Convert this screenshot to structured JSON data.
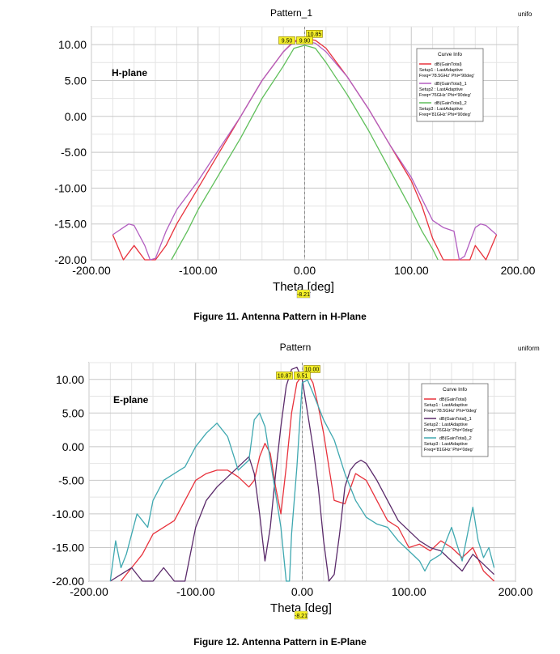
{
  "charts": [
    {
      "title": "Pattern_1",
      "corner_label": "unifo",
      "plane_label": "H-plane",
      "caption": "Figure 11. Antenna Pattern in H-Plane",
      "xlabel": "Theta [deg]",
      "x_marker_label": "-8.21",
      "legend_title": "Curve Info",
      "legend": [
        {
          "lines": [
            "dB(GainTotal)",
            "Setup1 : LastAdaptive",
            "Freq='78.5GHz' Phi='90deg'"
          ],
          "color": "#e8323c"
        },
        {
          "lines": [
            "dB(GainTotal)_1",
            "Setup2 : LastAdaptive",
            "Freq='76GHz' Phi='90deg'"
          ],
          "color": "#b25ec0"
        },
        {
          "lines": [
            "dB(GainTotal)_2",
            "Setup3 : LastAdaptive",
            "Freq='81GHz' Phi='90deg'"
          ],
          "color": "#5fbf5a"
        }
      ],
      "peak_labels": [
        "10.85",
        "9.50",
        "9.90"
      ]
    },
    {
      "title": "Pattern",
      "corner_label": "uniform",
      "plane_label": "E-plane",
      "caption": "Figure 12. Antenna Pattern in E-Plane",
      "xlabel": "Theta [deg]",
      "x_marker_label": "-8.21",
      "legend_title": "Curve Info",
      "legend": [
        {
          "lines": [
            "dB(GainTotal)",
            "Setup1 : LastAdaptive",
            "Freq='78.5GHz' Phi='0deg'"
          ],
          "color": "#e8323c"
        },
        {
          "lines": [
            "dB(GainTotal)_1",
            "Setup2 : LastAdaptive",
            "Freq='76GHz' Phi='0deg'"
          ],
          "color": "#5a2a6a"
        },
        {
          "lines": [
            "dB(GainTotal)_2",
            "Setup3 : LastAdaptive",
            "Freq='81GHz' Phi='0deg'"
          ],
          "color": "#3fa8b0"
        }
      ],
      "peak_labels": [
        "10.00",
        "10.87",
        "9.51"
      ]
    }
  ],
  "chart_data": [
    {
      "type": "line",
      "title": "Pattern_1",
      "xlabel": "Theta [deg]",
      "ylabel": "",
      "xlim": [
        -200,
        200
      ],
      "ylim": [
        -20,
        12.5
      ],
      "xticks": [
        "-200.00",
        "-100.00",
        "0.00",
        "100.00",
        "200.00"
      ],
      "xtick_values": [
        -200,
        -100,
        0,
        100,
        200
      ],
      "yticks": [
        "10.00",
        "5.00",
        "0.00",
        "-5.00",
        "-10.00",
        "-15.00",
        "-20.00"
      ],
      "ytick_values": [
        10,
        5,
        0,
        -5,
        -10,
        -15,
        -20
      ],
      "grid": true,
      "legend_position": "top-right",
      "series": [
        {
          "name": "dB(GainTotal)",
          "color": "#e8323c",
          "x": [
            -180,
            -170,
            -160,
            -150,
            -140,
            -130,
            -120,
            -100,
            -80,
            -60,
            -40,
            -20,
            -10,
            0,
            10,
            20,
            40,
            60,
            80,
            100,
            110,
            120,
            130,
            135,
            140,
            155,
            160,
            170,
            180
          ],
          "y": [
            -16.5,
            -20,
            -18,
            -21,
            -20,
            -18,
            -15,
            -10,
            -5,
            0,
            5,
            9,
            10.5,
            10.85,
            10.6,
            9.5,
            5.5,
            1,
            -4,
            -9,
            -12.5,
            -17,
            -22,
            -22,
            -22,
            -22,
            -18,
            -20,
            -16.5
          ]
        },
        {
          "name": "dB(GainTotal)_1",
          "color": "#b25ec0",
          "x": [
            -180,
            -170,
            -165,
            -160,
            -150,
            -145,
            -140,
            -130,
            -120,
            -100,
            -80,
            -60,
            -40,
            -20,
            -10,
            0,
            10,
            20,
            40,
            60,
            80,
            100,
            110,
            120,
            130,
            140,
            145,
            150,
            160,
            165,
            170,
            180
          ],
          "y": [
            -16.5,
            -15.5,
            -15,
            -15.2,
            -18,
            -20,
            -19.8,
            -16,
            -13,
            -9,
            -4.5,
            0,
            5,
            9,
            10.4,
            10.5,
            10.2,
            9,
            5.5,
            1,
            -4,
            -8.5,
            -11.5,
            -14.5,
            -15.5,
            -16,
            -20,
            -19.5,
            -15.5,
            -15,
            -15.2,
            -16.5
          ]
        },
        {
          "name": "dB(GainTotal)_2",
          "color": "#5fbf5a",
          "x": [
            -125,
            -110,
            -100,
            -80,
            -60,
            -40,
            -20,
            -10,
            0,
            10,
            20,
            40,
            60,
            80,
            100,
            110,
            120,
            125
          ],
          "y": [
            -20,
            -16,
            -13,
            -8,
            -3,
            2.5,
            7,
            9.5,
            9.9,
            9.5,
            7.5,
            3,
            -2,
            -7.5,
            -13,
            -16,
            -18.5,
            -20
          ]
        }
      ]
    },
    {
      "type": "line",
      "title": "Pattern",
      "xlabel": "Theta [deg]",
      "ylabel": "",
      "xlim": [
        -200,
        200
      ],
      "ylim": [
        -20,
        12.5
      ],
      "xticks": [
        "-200.00",
        "-100.00",
        "0.00",
        "100.00",
        "200.00"
      ],
      "xtick_values": [
        -200,
        -100,
        0,
        100,
        200
      ],
      "yticks": [
        "10.00",
        "5.00",
        "0.00",
        "-5.00",
        "-10.00",
        "-15.00",
        "-20.00"
      ],
      "ytick_values": [
        10,
        5,
        0,
        -5,
        -10,
        -15,
        -20
      ],
      "grid": true,
      "legend_position": "top-right",
      "series": [
        {
          "name": "dB(GainTotal)",
          "color": "#e8323c",
          "x": [
            -170,
            -160,
            -150,
            -140,
            -120,
            -100,
            -90,
            -80,
            -70,
            -60,
            -50,
            -45,
            -40,
            -35,
            -30,
            -25,
            -20,
            -15,
            -10,
            -5,
            0,
            5,
            10,
            15,
            20,
            25,
            30,
            40,
            50,
            60,
            70,
            80,
            90,
            100,
            110,
            120,
            130,
            140,
            150,
            160,
            170,
            180
          ],
          "y": [
            -20,
            -18,
            -16,
            -13,
            -11,
            -5,
            -4,
            -3.5,
            -3.5,
            -4.5,
            -6,
            -5,
            -1.5,
            0.5,
            -1,
            -6,
            -10,
            -3,
            5,
            9.5,
            10.6,
            10.87,
            9.5,
            6,
            2,
            -3,
            -8,
            -8.5,
            -4,
            -5,
            -8,
            -11,
            -12,
            -15,
            -14.5,
            -15.5,
            -14,
            -15,
            -16.5,
            -15,
            -18.5,
            -20
          ]
        },
        {
          "name": "dB(GainTotal)_1",
          "color": "#5a2a6a",
          "x": [
            -180,
            -170,
            -160,
            -150,
            -140,
            -130,
            -120,
            -110,
            -100,
            -90,
            -80,
            -70,
            -60,
            -50,
            -45,
            -40,
            -35,
            -30,
            -25,
            -20,
            -15,
            -10,
            -5,
            0,
            5,
            10,
            15,
            20,
            25,
            30,
            35,
            40,
            45,
            50,
            55,
            60,
            70,
            80,
            90,
            100,
            110,
            120,
            130,
            140,
            150,
            160,
            170,
            180
          ],
          "y": [
            -20,
            -19,
            -18,
            -20,
            -20,
            -18,
            -20,
            -20,
            -12,
            -8,
            -6,
            -4.5,
            -3,
            -1.5,
            -4,
            -10,
            -17,
            -12,
            -4,
            3,
            9,
            11.5,
            11.8,
            10,
            5,
            0,
            -6,
            -14,
            -20,
            -19,
            -13,
            -6,
            -3.5,
            -2.5,
            -2,
            -2.5,
            -5,
            -8,
            -11,
            -12.5,
            -14,
            -15,
            -15.5,
            -17,
            -18.5,
            -16,
            -17.5,
            -19
          ]
        },
        {
          "name": "dB(GainTotal)_2",
          "color": "#3fa8b0",
          "x": [
            -180,
            -175,
            -170,
            -165,
            -160,
            -155,
            -150,
            -145,
            -140,
            -130,
            -120,
            -110,
            -100,
            -90,
            -80,
            -70,
            -60,
            -50,
            -45,
            -40,
            -35,
            -30,
            -25,
            -20,
            -15,
            -12,
            -10,
            -5,
            0,
            5,
            10,
            15,
            20,
            25,
            30,
            40,
            50,
            60,
            70,
            80,
            90,
            100,
            110,
            115,
            120,
            130,
            140,
            150,
            160,
            165,
            170,
            175,
            180
          ],
          "y": [
            -20,
            -14,
            -18,
            -16,
            -13,
            -10,
            -11,
            -12,
            -8,
            -5,
            -4,
            -3,
            0,
            2,
            3.5,
            1.5,
            -3.5,
            -2,
            4,
            5,
            3,
            -2,
            -7,
            -12,
            -20,
            -20,
            -13,
            -3,
            9.51,
            9.9,
            8,
            6,
            4,
            2.5,
            1,
            -4,
            -8,
            -10.5,
            -11.5,
            -12,
            -14,
            -15.5,
            -17,
            -18.5,
            -17,
            -16,
            -12,
            -17,
            -9,
            -14,
            -16.5,
            -15,
            -18
          ]
        }
      ]
    }
  ]
}
